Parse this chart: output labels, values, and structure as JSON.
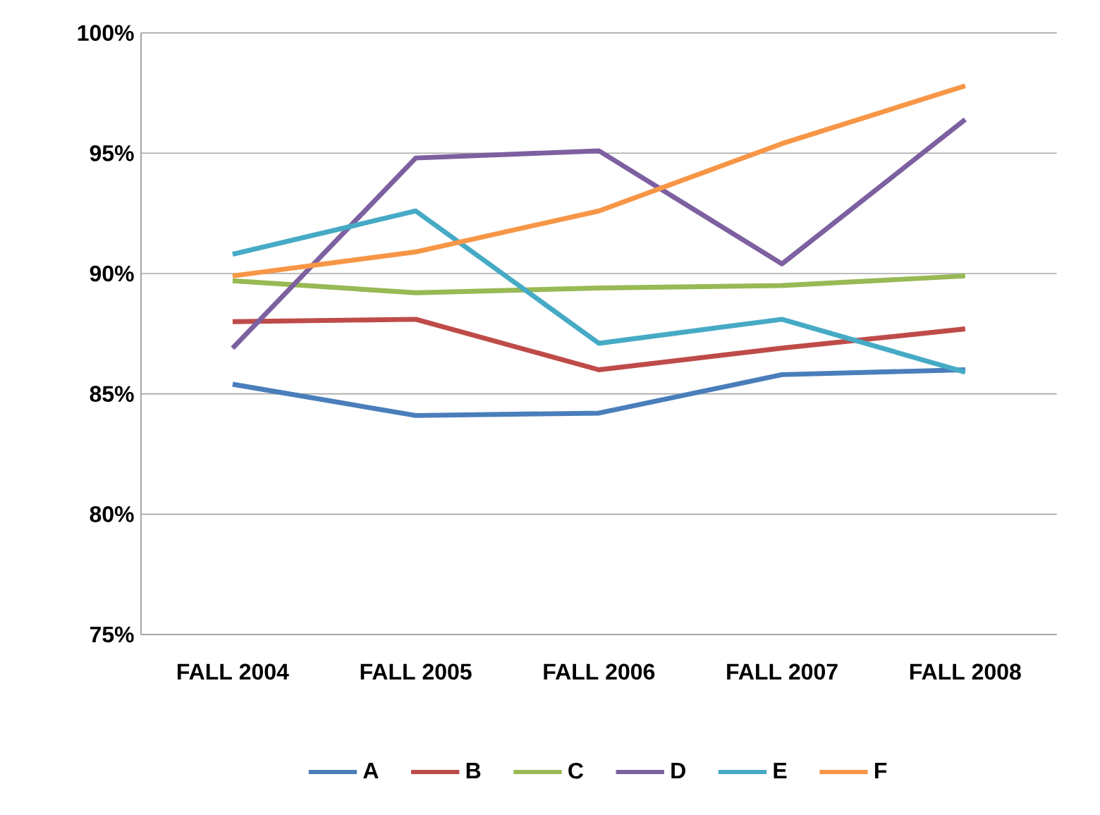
{
  "chart_data": {
    "type": "line",
    "categories": [
      "FALL 2004",
      "FALL 2005",
      "FALL 2006",
      "FALL 2007",
      "FALL 2008"
    ],
    "ylim": [
      75,
      100
    ],
    "yticks": [
      {
        "value": 75,
        "label": "75%"
      },
      {
        "value": 80,
        "label": "80%"
      },
      {
        "value": 85,
        "label": "85%"
      },
      {
        "value": 90,
        "label": "90%"
      },
      {
        "value": 95,
        "label": "95%"
      },
      {
        "value": 100,
        "label": "100%"
      }
    ],
    "grid": "y",
    "legend": "bottom",
    "series": [
      {
        "name": "A",
        "color": "#4a7ebb",
        "values": [
          85.4,
          84.1,
          84.2,
          85.8,
          86.0
        ]
      },
      {
        "name": "B",
        "color": "#be4b48",
        "values": [
          88.0,
          88.1,
          86.0,
          86.9,
          87.7
        ]
      },
      {
        "name": "C",
        "color": "#98b954",
        "values": [
          89.7,
          89.2,
          89.4,
          89.5,
          89.9
        ]
      },
      {
        "name": "D",
        "color": "#7d60a0",
        "values": [
          86.9,
          94.8,
          95.1,
          90.4,
          96.4
        ]
      },
      {
        "name": "E",
        "color": "#46aac5",
        "values": [
          90.8,
          92.6,
          87.1,
          88.1,
          85.9
        ]
      },
      {
        "name": "F",
        "color": "#f79646",
        "values": [
          89.9,
          90.9,
          92.6,
          95.4,
          97.8
        ]
      }
    ]
  }
}
